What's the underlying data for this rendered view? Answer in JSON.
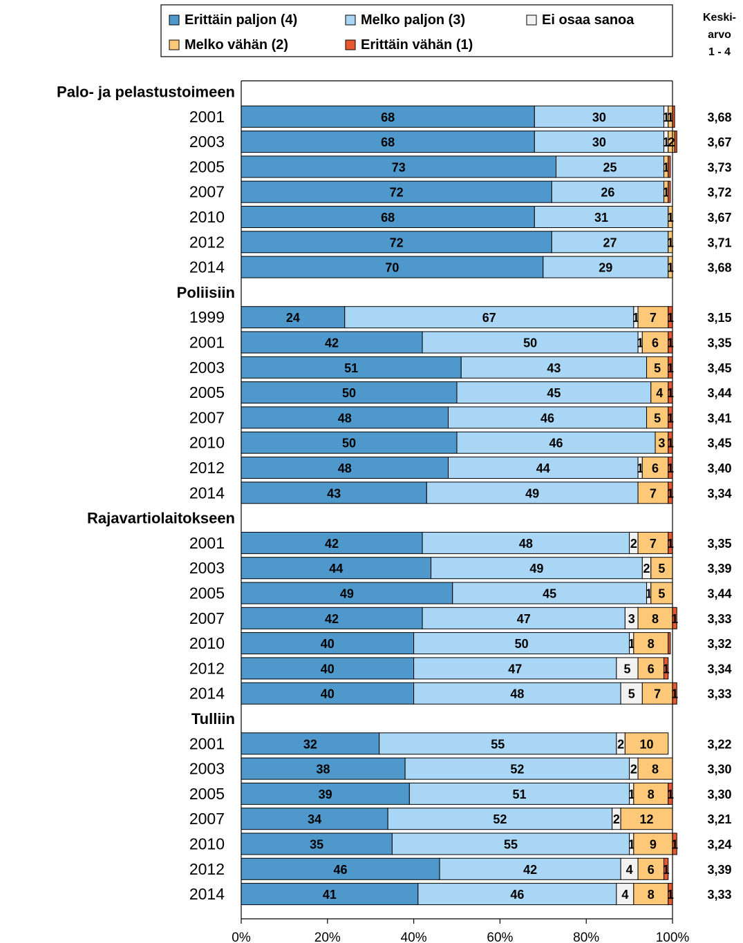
{
  "chart_data": {
    "type": "bar",
    "orientation": "horizontal",
    "stacked": true,
    "percent": true,
    "xlim": [
      0,
      100
    ],
    "x_ticks": [
      "0%",
      "20%",
      "40%",
      "60%",
      "80%",
      "100%"
    ],
    "legend": {
      "placement": "top",
      "entries": [
        {
          "label": "Erittäin paljon (4)",
          "color": "#4f98cb"
        },
        {
          "label": "Melko paljon (3)",
          "color": "#a9d6f5"
        },
        {
          "label": "Ei osaa sanoa",
          "color": "#f2f2f2"
        },
        {
          "label": "Melko vähän (2)",
          "color": "#fdc878"
        },
        {
          "label": "Erittäin vähän (1)",
          "color": "#e8582e"
        }
      ]
    },
    "mean_header": [
      "Keski-",
      "arvo",
      "1 - 4"
    ],
    "series_order": [
      "Erittäin paljon (4)",
      "Melko paljon (3)",
      "Ei osaa sanoa",
      "Melko vähän (2)",
      "Erittäin vähän (1)"
    ],
    "groups": [
      {
        "name": "Palo- ja pelastustoimeen",
        "rows": [
          {
            "year": "2001",
            "values": [
              68,
              30,
              1,
              1,
              0.5
            ],
            "labels": [
              "68",
              "30",
              "1",
              "1",
              ""
            ],
            "mean": "3,68"
          },
          {
            "year": "2003",
            "values": [
              68,
              30,
              1,
              1.5,
              0.5
            ],
            "labels": [
              "68",
              "30",
              "1",
              "2",
              ""
            ],
            "mean": "3,67"
          },
          {
            "year": "2005",
            "values": [
              73,
              25,
              0,
              1,
              0.5
            ],
            "labels": [
              "73",
              "25",
              "",
              "1",
              ""
            ],
            "mean": "3,73"
          },
          {
            "year": "2007",
            "values": [
              72,
              26,
              0,
              1,
              0.5
            ],
            "labels": [
              "72",
              "26",
              "",
              "1",
              ""
            ],
            "mean": "3,72"
          },
          {
            "year": "2010",
            "values": [
              68,
              31,
              0,
              1,
              0
            ],
            "labels": [
              "68",
              "31",
              "",
              "1",
              ""
            ],
            "mean": "3,67"
          },
          {
            "year": "2012",
            "values": [
              72,
              27,
              0,
              1,
              0
            ],
            "labels": [
              "72",
              "27",
              "",
              "1",
              ""
            ],
            "mean": "3,71"
          },
          {
            "year": "2014",
            "values": [
              70,
              29,
              0,
              1,
              0
            ],
            "labels": [
              "70",
              "29",
              "",
              "1",
              ""
            ],
            "mean": "3,68"
          }
        ]
      },
      {
        "name": "Poliisiin",
        "rows": [
          {
            "year": "1999",
            "values": [
              24,
              67,
              1,
              7,
              1
            ],
            "labels": [
              "24",
              "67",
              "1",
              "7",
              "1"
            ],
            "mean": "3,15"
          },
          {
            "year": "2001",
            "values": [
              42,
              50,
              1,
              6,
              1
            ],
            "labels": [
              "42",
              "50",
              "1",
              "6",
              "1"
            ],
            "mean": "3,35"
          },
          {
            "year": "2003",
            "values": [
              51,
              43,
              0,
              5,
              1
            ],
            "labels": [
              "51",
              "43",
              "",
              "5",
              "1"
            ],
            "mean": "3,45"
          },
          {
            "year": "2005",
            "values": [
              50,
              45,
              0,
              4,
              1
            ],
            "labels": [
              "50",
              "45",
              "",
              "4",
              "1"
            ],
            "mean": "3,44"
          },
          {
            "year": "2007",
            "values": [
              48,
              46,
              0,
              5,
              1
            ],
            "labels": [
              "48",
              "46",
              "",
              "5",
              "1"
            ],
            "mean": "3,41"
          },
          {
            "year": "2010",
            "values": [
              50,
              46,
              0,
              3,
              1
            ],
            "labels": [
              "50",
              "46",
              "",
              "3",
              "1"
            ],
            "mean": "3,45"
          },
          {
            "year": "2012",
            "values": [
              48,
              44,
              1,
              6,
              1
            ],
            "labels": [
              "48",
              "44",
              "1",
              "6",
              "1"
            ],
            "mean": "3,40"
          },
          {
            "year": "2014",
            "values": [
              43,
              49,
              0,
              7,
              1
            ],
            "labels": [
              "43",
              "49",
              "",
              "7",
              "1"
            ],
            "mean": "3,34"
          }
        ]
      },
      {
        "name": "Rajavartiolaitokseen",
        "rows": [
          {
            "year": "2001",
            "values": [
              42,
              48,
              2,
              7,
              1
            ],
            "labels": [
              "42",
              "48",
              "2",
              "7",
              "1"
            ],
            "mean": "3,35"
          },
          {
            "year": "2003",
            "values": [
              44,
              49,
              2,
              5,
              0
            ],
            "labels": [
              "44",
              "49",
              "2",
              "5",
              ""
            ],
            "mean": "3,39"
          },
          {
            "year": "2005",
            "values": [
              49,
              45,
              1,
              5,
              0
            ],
            "labels": [
              "49",
              "45",
              "1",
              "5",
              ""
            ],
            "mean": "3,44"
          },
          {
            "year": "2007",
            "values": [
              42,
              47,
              3,
              8,
              1
            ],
            "labels": [
              "42",
              "47",
              "3",
              "8",
              "1"
            ],
            "mean": "3,33"
          },
          {
            "year": "2010",
            "values": [
              40,
              50,
              1,
              8,
              0.5
            ],
            "labels": [
              "40",
              "50",
              "1",
              "8",
              ""
            ],
            "mean": "3,32"
          },
          {
            "year": "2012",
            "values": [
              40,
              47,
              5,
              6,
              1
            ],
            "labels": [
              "40",
              "47",
              "5",
              "6",
              "1"
            ],
            "mean": "3,34"
          },
          {
            "year": "2014",
            "values": [
              40,
              48,
              5,
              7,
              1
            ],
            "labels": [
              "40",
              "48",
              "5",
              "7",
              "1"
            ],
            "mean": "3,33"
          }
        ]
      },
      {
        "name": "Tulliin",
        "rows": [
          {
            "year": "2001",
            "values": [
              32,
              55,
              2,
              10,
              0
            ],
            "labels": [
              "32",
              "55",
              "2",
              "10",
              ""
            ],
            "mean": "3,22"
          },
          {
            "year": "2003",
            "values": [
              38,
              52,
              2,
              8,
              0
            ],
            "labels": [
              "38",
              "52",
              "2",
              "8",
              ""
            ],
            "mean": "3,30"
          },
          {
            "year": "2005",
            "values": [
              39,
              51,
              1,
              8,
              1
            ],
            "labels": [
              "39",
              "51",
              "1",
              "8",
              "1"
            ],
            "mean": "3,30"
          },
          {
            "year": "2007",
            "values": [
              34,
              52,
              2,
              12,
              0
            ],
            "labels": [
              "34",
              "52",
              "2",
              "12",
              ""
            ],
            "mean": "3,21"
          },
          {
            "year": "2010",
            "values": [
              35,
              55,
              1,
              9,
              1
            ],
            "labels": [
              "35",
              "55",
              "1",
              "9",
              "1"
            ],
            "mean": "3,24"
          },
          {
            "year": "2012",
            "values": [
              46,
              42,
              4,
              6,
              1
            ],
            "labels": [
              "46",
              "42",
              "4",
              "6",
              "1"
            ],
            "mean": "3,39"
          },
          {
            "year": "2014",
            "values": [
              41,
              46,
              4,
              8,
              1
            ],
            "labels": [
              "41",
              "46",
              "4",
              "8",
              "1"
            ],
            "mean": "3,33"
          }
        ]
      }
    ]
  }
}
